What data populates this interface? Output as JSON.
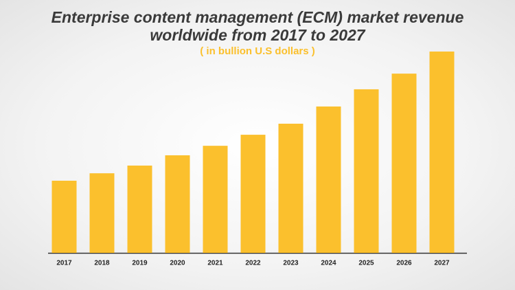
{
  "chart_data": {
    "type": "bar",
    "title": "Enterprise content management (ECM) market revenue worldwide from 2017 to 2027",
    "subtitle": "( in bullion U.S dollars )",
    "categories": [
      "2017",
      "2018",
      "2019",
      "2020",
      "2021",
      "2022",
      "2023",
      "2024",
      "2025",
      "2026",
      "2027"
    ],
    "values": [
      28.1,
      31.0,
      34.0,
      38.0,
      41.7,
      46.0,
      50.3,
      57.0,
      63.7,
      69.8,
      78.4
    ],
    "color": "#fbc02d"
  }
}
